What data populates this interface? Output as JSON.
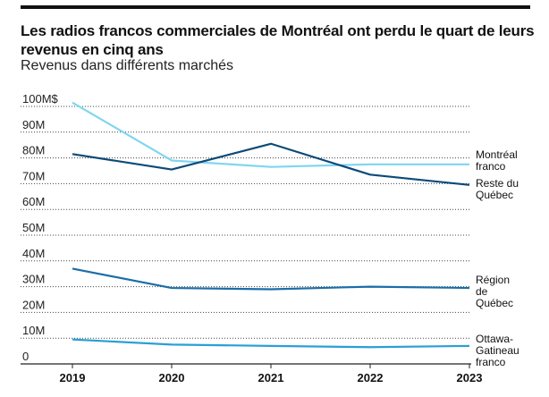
{
  "chart_data": {
    "type": "line",
    "title": "Les radios francos commerciales de Montréal ont perdu le quart de leurs revenus en cinq ans",
    "subtitle": "Revenus dans différents marchés",
    "x": [
      "2019",
      "2020",
      "2021",
      "2022",
      "2023"
    ],
    "ylim": [
      0,
      100
    ],
    "yticks": [
      "0",
      "10M",
      "20M",
      "30M",
      "40M",
      "50M",
      "60M",
      "70M",
      "80M",
      "90M",
      "100M$"
    ],
    "grid": true,
    "series": [
      {
        "name": "Montréal franco",
        "label_lines": [
          "Montréal",
          "franco"
        ],
        "color": "#7fd6ef",
        "values": [
          101.5,
          79,
          76.5,
          77.5,
          77.5
        ]
      },
      {
        "name": "Reste du Québec",
        "label_lines": [
          "Reste du",
          "Québec"
        ],
        "color": "#0b4a78",
        "values": [
          81.5,
          75.5,
          85.5,
          73.5,
          69.5
        ]
      },
      {
        "name": "Région de Québec",
        "label_lines": [
          "Région",
          "de",
          "Québec"
        ],
        "color": "#1a6ea8",
        "values": [
          37,
          29.5,
          29,
          30,
          29.5
        ]
      },
      {
        "name": "Ottawa-Gatineau franco",
        "label_lines": [
          "Ottawa-",
          "Gatineau",
          "franco"
        ],
        "color": "#2a9fd6",
        "values": [
          9.5,
          7.5,
          7,
          6.5,
          7
        ]
      }
    ]
  }
}
